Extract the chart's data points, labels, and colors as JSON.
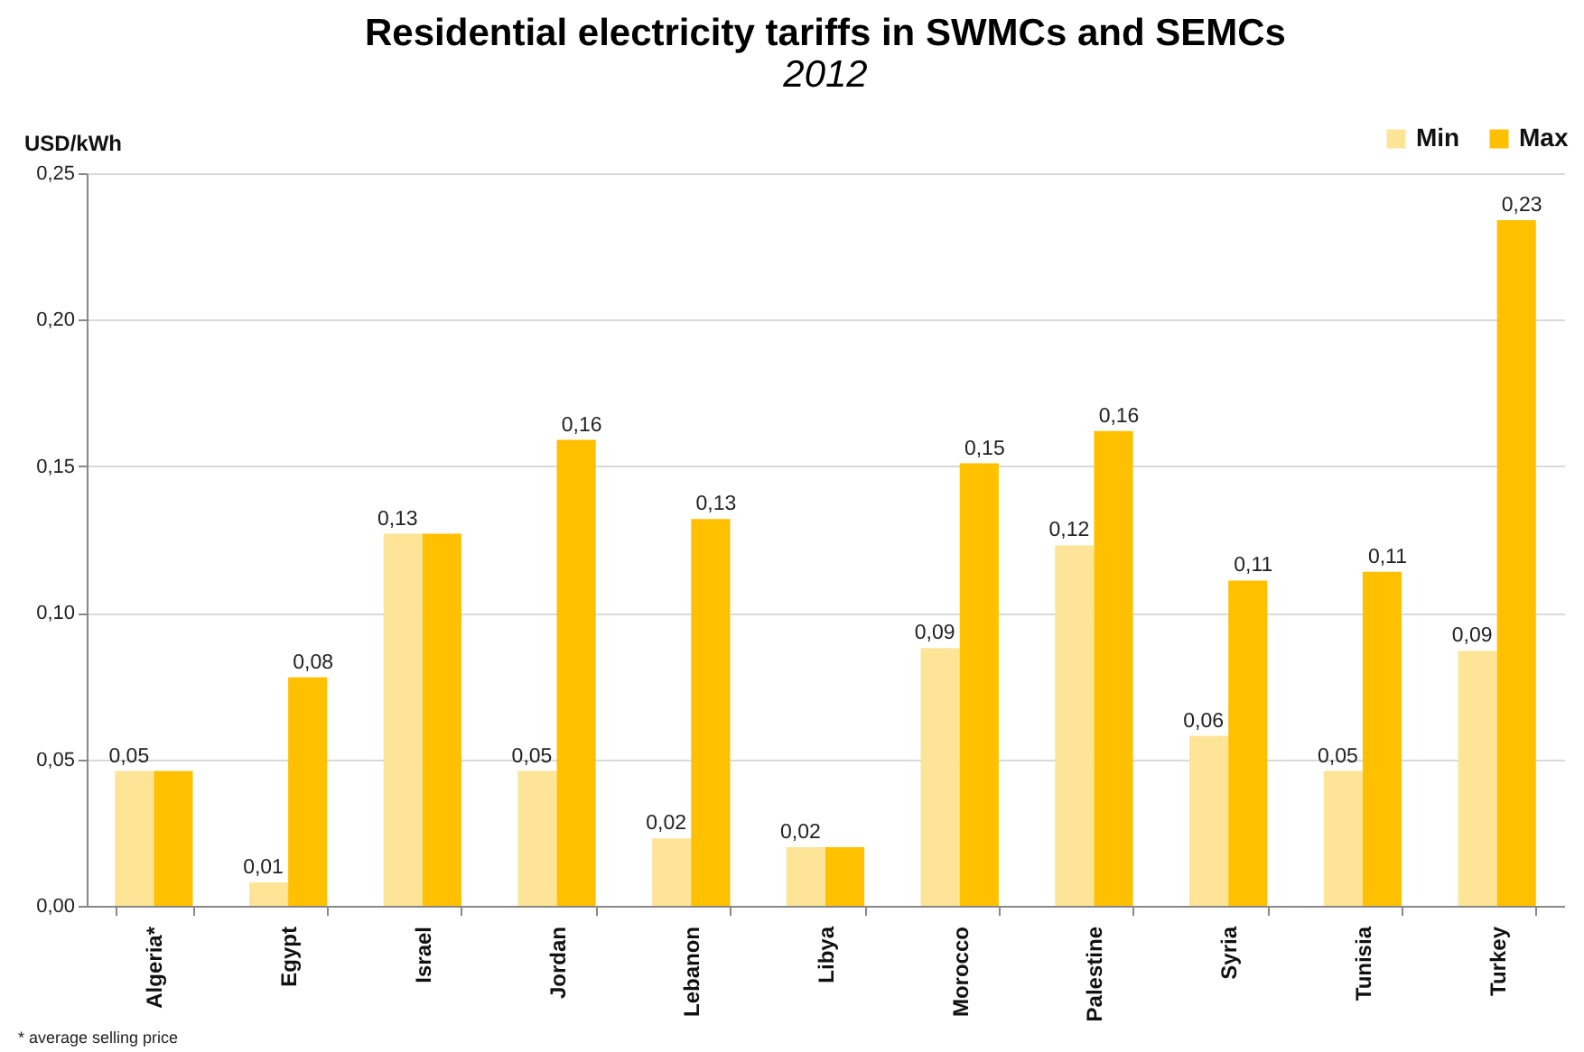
{
  "chart_data": {
    "type": "bar",
    "title": "Residential electricity tariffs in SWMCs and SEMCs",
    "subtitle": "2012",
    "ylabel": "USD/kWh",
    "categories": [
      "Algeria*",
      "Egypt",
      "Israel",
      "Jordan",
      "Lebanon",
      "Libya",
      "Morocco",
      "Palestine",
      "Syria",
      "Tunisia",
      "Turkey"
    ],
    "series": [
      {
        "name": "Min",
        "color": "#fde496",
        "values": [
          0.046,
          0.008,
          0.127,
          0.046,
          0.023,
          0.02,
          0.088,
          0.123,
          0.058,
          0.046,
          0.087
        ],
        "value_labels": [
          "0,05",
          "0,01",
          "0,13",
          "0,05",
          "0,02",
          "0,02",
          "0,09",
          "0,12",
          "0,06",
          "0,05",
          "0,09"
        ]
      },
      {
        "name": "Max",
        "color": "#ffc000",
        "values": [
          0.046,
          0.078,
          0.127,
          0.159,
          0.132,
          0.02,
          0.151,
          0.162,
          0.111,
          0.114,
          0.234
        ],
        "value_labels": [
          null,
          "0,08",
          null,
          "0,16",
          "0,13",
          null,
          "0,15",
          "0,16",
          "0,11",
          "0,11",
          "0,23"
        ]
      }
    ],
    "ylim": [
      0,
      0.25
    ],
    "yticks": [
      {
        "value": 0,
        "label": "0,00"
      },
      {
        "value": 0.05,
        "label": "0,05"
      },
      {
        "value": 0.1,
        "label": "0,10"
      },
      {
        "value": 0.15,
        "label": "0,15"
      },
      {
        "value": 0.2,
        "label": "0,20"
      },
      {
        "value": 0.25,
        "label": "0,25"
      }
    ],
    "grid": "y",
    "legend": "top right",
    "annotations": [
      "* average selling price"
    ]
  }
}
